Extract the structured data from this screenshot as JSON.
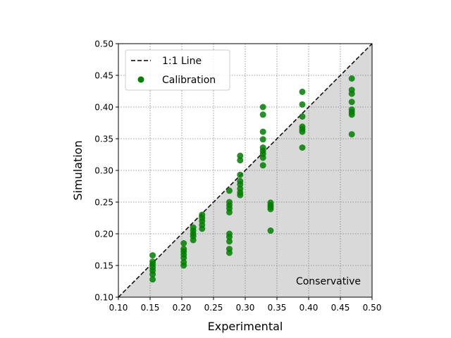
{
  "chart_data": {
    "type": "scatter",
    "xlabel": "Experimental",
    "ylabel": "Simulation",
    "xlim": [
      0.1,
      0.5
    ],
    "ylim": [
      0.1,
      0.5
    ],
    "xticks": [
      "0.10",
      "0.15",
      "0.20",
      "0.25",
      "0.30",
      "0.35",
      "0.40",
      "0.45",
      "0.50"
    ],
    "yticks": [
      "0.10",
      "0.15",
      "0.20",
      "0.25",
      "0.30",
      "0.35",
      "0.40",
      "0.45",
      "0.50"
    ],
    "grid": true,
    "legend_position": "top-left",
    "shaded_region": {
      "label": "Conservative",
      "below": "1:1 Line",
      "color": "#d9d9d9"
    },
    "reference_line": {
      "name": "1:1 Line",
      "style": "dashed",
      "color": "#000000",
      "points": [
        [
          0.1,
          0.1
        ],
        [
          0.5,
          0.5
        ]
      ]
    },
    "series": [
      {
        "name": "Calibration",
        "color": "#007f00",
        "points": [
          [
            0.154,
            0.166
          ],
          [
            0.154,
            0.156
          ],
          [
            0.154,
            0.152
          ],
          [
            0.154,
            0.147
          ],
          [
            0.154,
            0.142
          ],
          [
            0.154,
            0.136
          ],
          [
            0.154,
            0.128
          ],
          [
            0.203,
            0.185
          ],
          [
            0.203,
            0.176
          ],
          [
            0.203,
            0.172
          ],
          [
            0.203,
            0.167
          ],
          [
            0.203,
            0.162
          ],
          [
            0.203,
            0.155
          ],
          [
            0.203,
            0.15
          ],
          [
            0.218,
            0.21
          ],
          [
            0.218,
            0.205
          ],
          [
            0.218,
            0.2
          ],
          [
            0.218,
            0.196
          ],
          [
            0.218,
            0.19
          ],
          [
            0.232,
            0.23
          ],
          [
            0.232,
            0.225
          ],
          [
            0.232,
            0.22
          ],
          [
            0.232,
            0.214
          ],
          [
            0.232,
            0.208
          ],
          [
            0.275,
            0.268
          ],
          [
            0.275,
            0.25
          ],
          [
            0.275,
            0.245
          ],
          [
            0.275,
            0.24
          ],
          [
            0.275,
            0.234
          ],
          [
            0.275,
            0.2
          ],
          [
            0.275,
            0.195
          ],
          [
            0.275,
            0.188
          ],
          [
            0.275,
            0.176
          ],
          [
            0.275,
            0.17
          ],
          [
            0.292,
            0.323
          ],
          [
            0.292,
            0.316
          ],
          [
            0.292,
            0.293
          ],
          [
            0.292,
            0.283
          ],
          [
            0.292,
            0.278
          ],
          [
            0.292,
            0.271
          ],
          [
            0.292,
            0.265
          ],
          [
            0.292,
            0.261
          ],
          [
            0.328,
            0.4
          ],
          [
            0.328,
            0.388
          ],
          [
            0.328,
            0.361
          ],
          [
            0.328,
            0.349
          ],
          [
            0.328,
            0.336
          ],
          [
            0.328,
            0.331
          ],
          [
            0.328,
            0.326
          ],
          [
            0.328,
            0.32
          ],
          [
            0.328,
            0.308
          ],
          [
            0.34,
            0.249
          ],
          [
            0.34,
            0.245
          ],
          [
            0.34,
            0.242
          ],
          [
            0.34,
            0.239
          ],
          [
            0.34,
            0.205
          ],
          [
            0.39,
            0.424
          ],
          [
            0.39,
            0.404
          ],
          [
            0.39,
            0.385
          ],
          [
            0.39,
            0.369
          ],
          [
            0.39,
            0.365
          ],
          [
            0.39,
            0.361
          ],
          [
            0.39,
            0.336
          ],
          [
            0.468,
            0.445
          ],
          [
            0.468,
            0.427
          ],
          [
            0.468,
            0.421
          ],
          [
            0.468,
            0.408
          ],
          [
            0.468,
            0.396
          ],
          [
            0.468,
            0.392
          ],
          [
            0.468,
            0.388
          ],
          [
            0.468,
            0.357
          ]
        ]
      }
    ]
  }
}
